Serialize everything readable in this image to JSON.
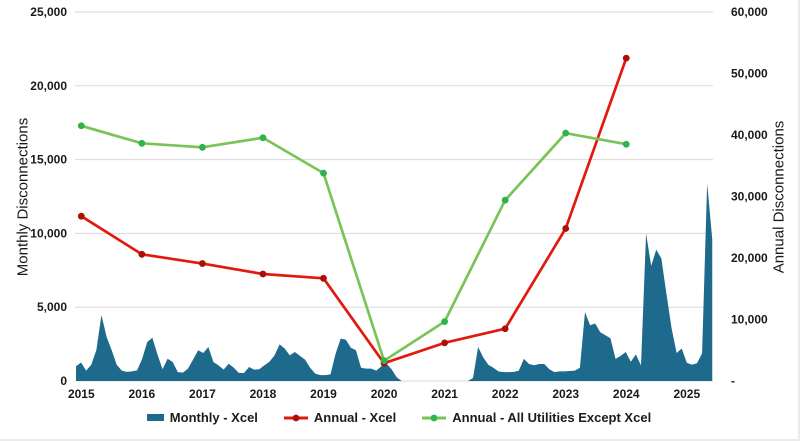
{
  "chart_data": {
    "type": "combo",
    "title": "",
    "left_axis": {
      "label": "Monthly Disconnections",
      "min": 0,
      "max": 25000,
      "step": 5000,
      "tick_labels": [
        "0",
        "5,000",
        "10,000",
        "15,000",
        "20,000",
        "25,000"
      ]
    },
    "right_axis": {
      "label": "Annual Disconnections",
      "min": 0,
      "max": 60000,
      "step": 10000,
      "tick_labels": [
        "-",
        "10,000",
        "20,000",
        "30,000",
        "40,000",
        "50,000",
        "60,000"
      ]
    },
    "x_tick_labels": [
      "2015",
      "2016",
      "2017",
      "2018",
      "2019",
      "2020",
      "2021",
      "2022",
      "2023",
      "2024",
      "2025"
    ],
    "grid": "horizontal, every 5,000 on left axis, light gray",
    "monthly_series": {
      "name": "Monthly - Xcel",
      "type": "area",
      "axis": "left",
      "start_month": "2015-01",
      "end_month": "2025-06",
      "fill_color": "#1e6a8c",
      "values": [
        1000,
        1250,
        700,
        1100,
        2100,
        4470,
        3000,
        2100,
        1100,
        700,
        620,
        650,
        720,
        1510,
        2640,
        2930,
        1800,
        800,
        1510,
        1290,
        600,
        570,
        835,
        1445,
        2080,
        1900,
        2300,
        1290,
        1060,
        770,
        1170,
        900,
        540,
        540,
        950,
        770,
        800,
        1060,
        1300,
        1740,
        2480,
        2200,
        1740,
        1965,
        1700,
        1450,
        900,
        500,
        400,
        400,
        450,
        1850,
        2870,
        2800,
        2250,
        2080,
        900,
        840,
        840,
        700,
        1000,
        1180,
        800,
        250,
        0,
        0,
        0,
        0,
        0,
        0,
        0,
        0,
        0,
        0,
        0,
        0,
        0,
        0,
        200,
        2300,
        1600,
        1100,
        900,
        650,
        600,
        600,
        620,
        700,
        1500,
        1150,
        1070,
        1150,
        1150,
        800,
        600,
        650,
        650,
        680,
        700,
        900,
        4675,
        3775,
        3900,
        3300,
        3100,
        2900,
        1500,
        1700,
        1965,
        1300,
        1800,
        1060,
        10000,
        7800,
        8900,
        8300,
        5900,
        3600,
        1900,
        2200,
        1240,
        1100,
        1200,
        1870,
        13400,
        9600
      ]
    },
    "annual_series": [
      {
        "name": "Annual - Xcel",
        "type": "line",
        "axis": "right",
        "line_color": "#e1190e",
        "marker_color": "#a81008",
        "years": [
          2015,
          2016,
          2017,
          2018,
          2019,
          2020,
          2021,
          2022,
          2023,
          2024
        ],
        "values": [
          26800,
          20600,
          19100,
          17400,
          16700,
          2900,
          6200,
          8500,
          24800,
          52500
        ]
      },
      {
        "name": "Annual - All Utilities Except Xcel",
        "type": "line",
        "axis": "right",
        "line_color": "#79c457",
        "marker_color": "#2eb34e",
        "years": [
          2015,
          2016,
          2017,
          2018,
          2019,
          2020,
          2021,
          2022,
          2023,
          2024
        ],
        "values": [
          41500,
          38650,
          38000,
          39550,
          33800,
          3300,
          9650,
          29400,
          40300,
          38500
        ]
      }
    ],
    "legend": [
      {
        "label": "Monthly - Xcel",
        "swatch": "area"
      },
      {
        "label": "Annual - Xcel",
        "swatch": "line-dot"
      },
      {
        "label": "Annual - All Utilities Except Xcel",
        "swatch": "line-dot"
      }
    ],
    "colors": {
      "area": "#1e6a8c",
      "annual_xcel_line": "#e1190e",
      "annual_xcel_marker": "#a81008",
      "annual_all_line": "#79c457",
      "annual_all_marker": "#2eb34e",
      "grid": "#dadada",
      "text": "#191919",
      "background": "#ffffff"
    }
  }
}
